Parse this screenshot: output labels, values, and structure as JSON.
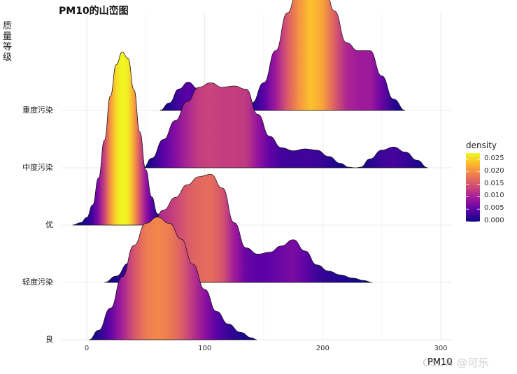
{
  "chart_data": {
    "type": "ridgeline",
    "title": "PM10的山峦图",
    "xlabel": "PM10",
    "ylabel": "质量等级",
    "xlim": [
      -15,
      305
    ],
    "x_ticks": [
      0,
      100,
      200,
      300
    ],
    "categories": [
      "良",
      "轻度污染",
      "优",
      "中度污染",
      "重度污染"
    ],
    "legend": {
      "title": "density",
      "ticks": [
        "0.025",
        "0.020",
        "0.015",
        "0.010",
        "0.005",
        "0.000"
      ],
      "tick_values": [
        0.025,
        0.02,
        0.015,
        0.01,
        0.005,
        0.0
      ],
      "max": 0.0275,
      "colormap": [
        "#0d0887",
        "#5c01a6",
        "#9c179e",
        "#cc4778",
        "#ed7953",
        "#fdb42f",
        "#f0f921"
      ]
    },
    "grid": true,
    "series": [
      {
        "name": "良",
        "x": [
          2,
          10,
          20,
          30,
          40,
          50,
          60,
          70,
          80,
          90,
          100,
          110,
          120,
          130,
          140,
          144
        ],
        "density": [
          0.0,
          0.0015,
          0.005,
          0.01,
          0.015,
          0.0185,
          0.0195,
          0.0185,
          0.016,
          0.012,
          0.008,
          0.0045,
          0.0025,
          0.0012,
          0.0003,
          0.0
        ]
      },
      {
        "name": "轻度污染",
        "x": [
          15,
          25,
          35,
          45,
          55,
          65,
          75,
          85,
          95,
          105,
          115,
          125,
          135,
          145,
          155,
          165,
          175,
          185,
          195,
          205,
          215,
          225,
          235,
          242
        ],
        "density": [
          0.0,
          0.001,
          0.003,
          0.006,
          0.009,
          0.0115,
          0.0135,
          0.0155,
          0.0168,
          0.0172,
          0.015,
          0.0095,
          0.0055,
          0.0045,
          0.0048,
          0.0058,
          0.0068,
          0.005,
          0.0028,
          0.0018,
          0.0012,
          0.0007,
          0.0003,
          0.0
        ]
      },
      {
        "name": "优",
        "x": [
          -12,
          -5,
          0,
          5,
          10,
          15,
          20,
          25,
          30,
          35,
          40,
          45,
          50,
          55,
          60,
          65,
          70,
          75
        ],
        "density": [
          0.0,
          0.0004,
          0.0012,
          0.0032,
          0.0075,
          0.0135,
          0.0205,
          0.0255,
          0.0275,
          0.0265,
          0.0215,
          0.0148,
          0.0088,
          0.0045,
          0.0018,
          0.0007,
          0.0002,
          0.0
        ]
      },
      {
        "name": "中度污染",
        "x": [
          48,
          55,
          65,
          75,
          85,
          95,
          105,
          115,
          125,
          135,
          145,
          155,
          165,
          175,
          185,
          195,
          205,
          215,
          222,
          228,
          232,
          240,
          250,
          260,
          270,
          280,
          289
        ],
        "density": [
          0.0,
          0.0015,
          0.0045,
          0.0075,
          0.0105,
          0.0128,
          0.0135,
          0.0128,
          0.013,
          0.0125,
          0.0085,
          0.005,
          0.0032,
          0.0027,
          0.003,
          0.0028,
          0.0018,
          0.0007,
          0.0001,
          0.0,
          0.0001,
          0.0014,
          0.0028,
          0.0033,
          0.0025,
          0.0012,
          0.0
        ]
      },
      {
        "name": "重度污染",
        "x": [
          62,
          70,
          78,
          86,
          94,
          102,
          110,
          116,
          124,
          132,
          140,
          150,
          160,
          170,
          180,
          190,
          200,
          210,
          220,
          230,
          240,
          250,
          260,
          270
        ],
        "density": [
          0.0,
          0.0012,
          0.0034,
          0.0045,
          0.0035,
          0.0015,
          0.0002,
          0.0,
          0.0001,
          0.0004,
          0.0012,
          0.0044,
          0.0095,
          0.0155,
          0.0205,
          0.0239,
          0.0215,
          0.0158,
          0.0108,
          0.0095,
          0.0095,
          0.0055,
          0.0018,
          0.0
        ]
      }
    ]
  },
  "watermark": "CSDN @可乐"
}
